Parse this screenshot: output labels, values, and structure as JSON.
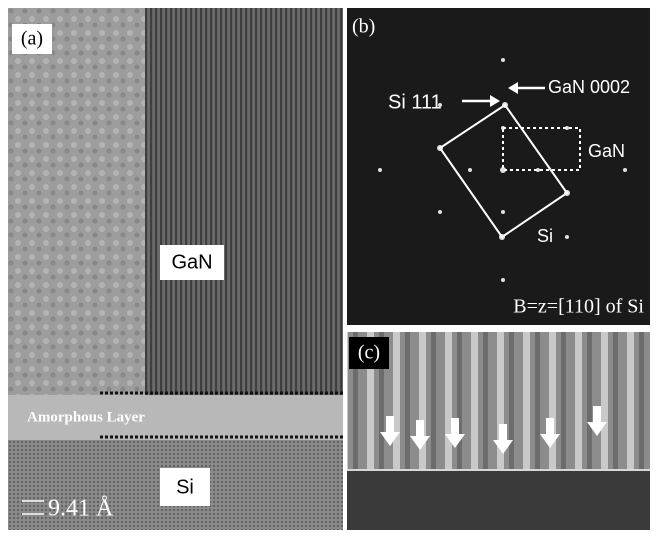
{
  "panel_a": {
    "label": "(a)",
    "gan_label": "GaN",
    "amorphous_label": "Amorphous Layer",
    "si_label": "Si",
    "scale_label": "9.41 Å"
  },
  "panel_b": {
    "label": "(b)",
    "si_spot_label": "Si 111",
    "gan_spot_label": "GaN 0002",
    "gan_label": "GaN",
    "si_label": "Si",
    "zone_label": "B=z=[110] of Si"
  },
  "panel_c": {
    "label": "(c)"
  }
}
